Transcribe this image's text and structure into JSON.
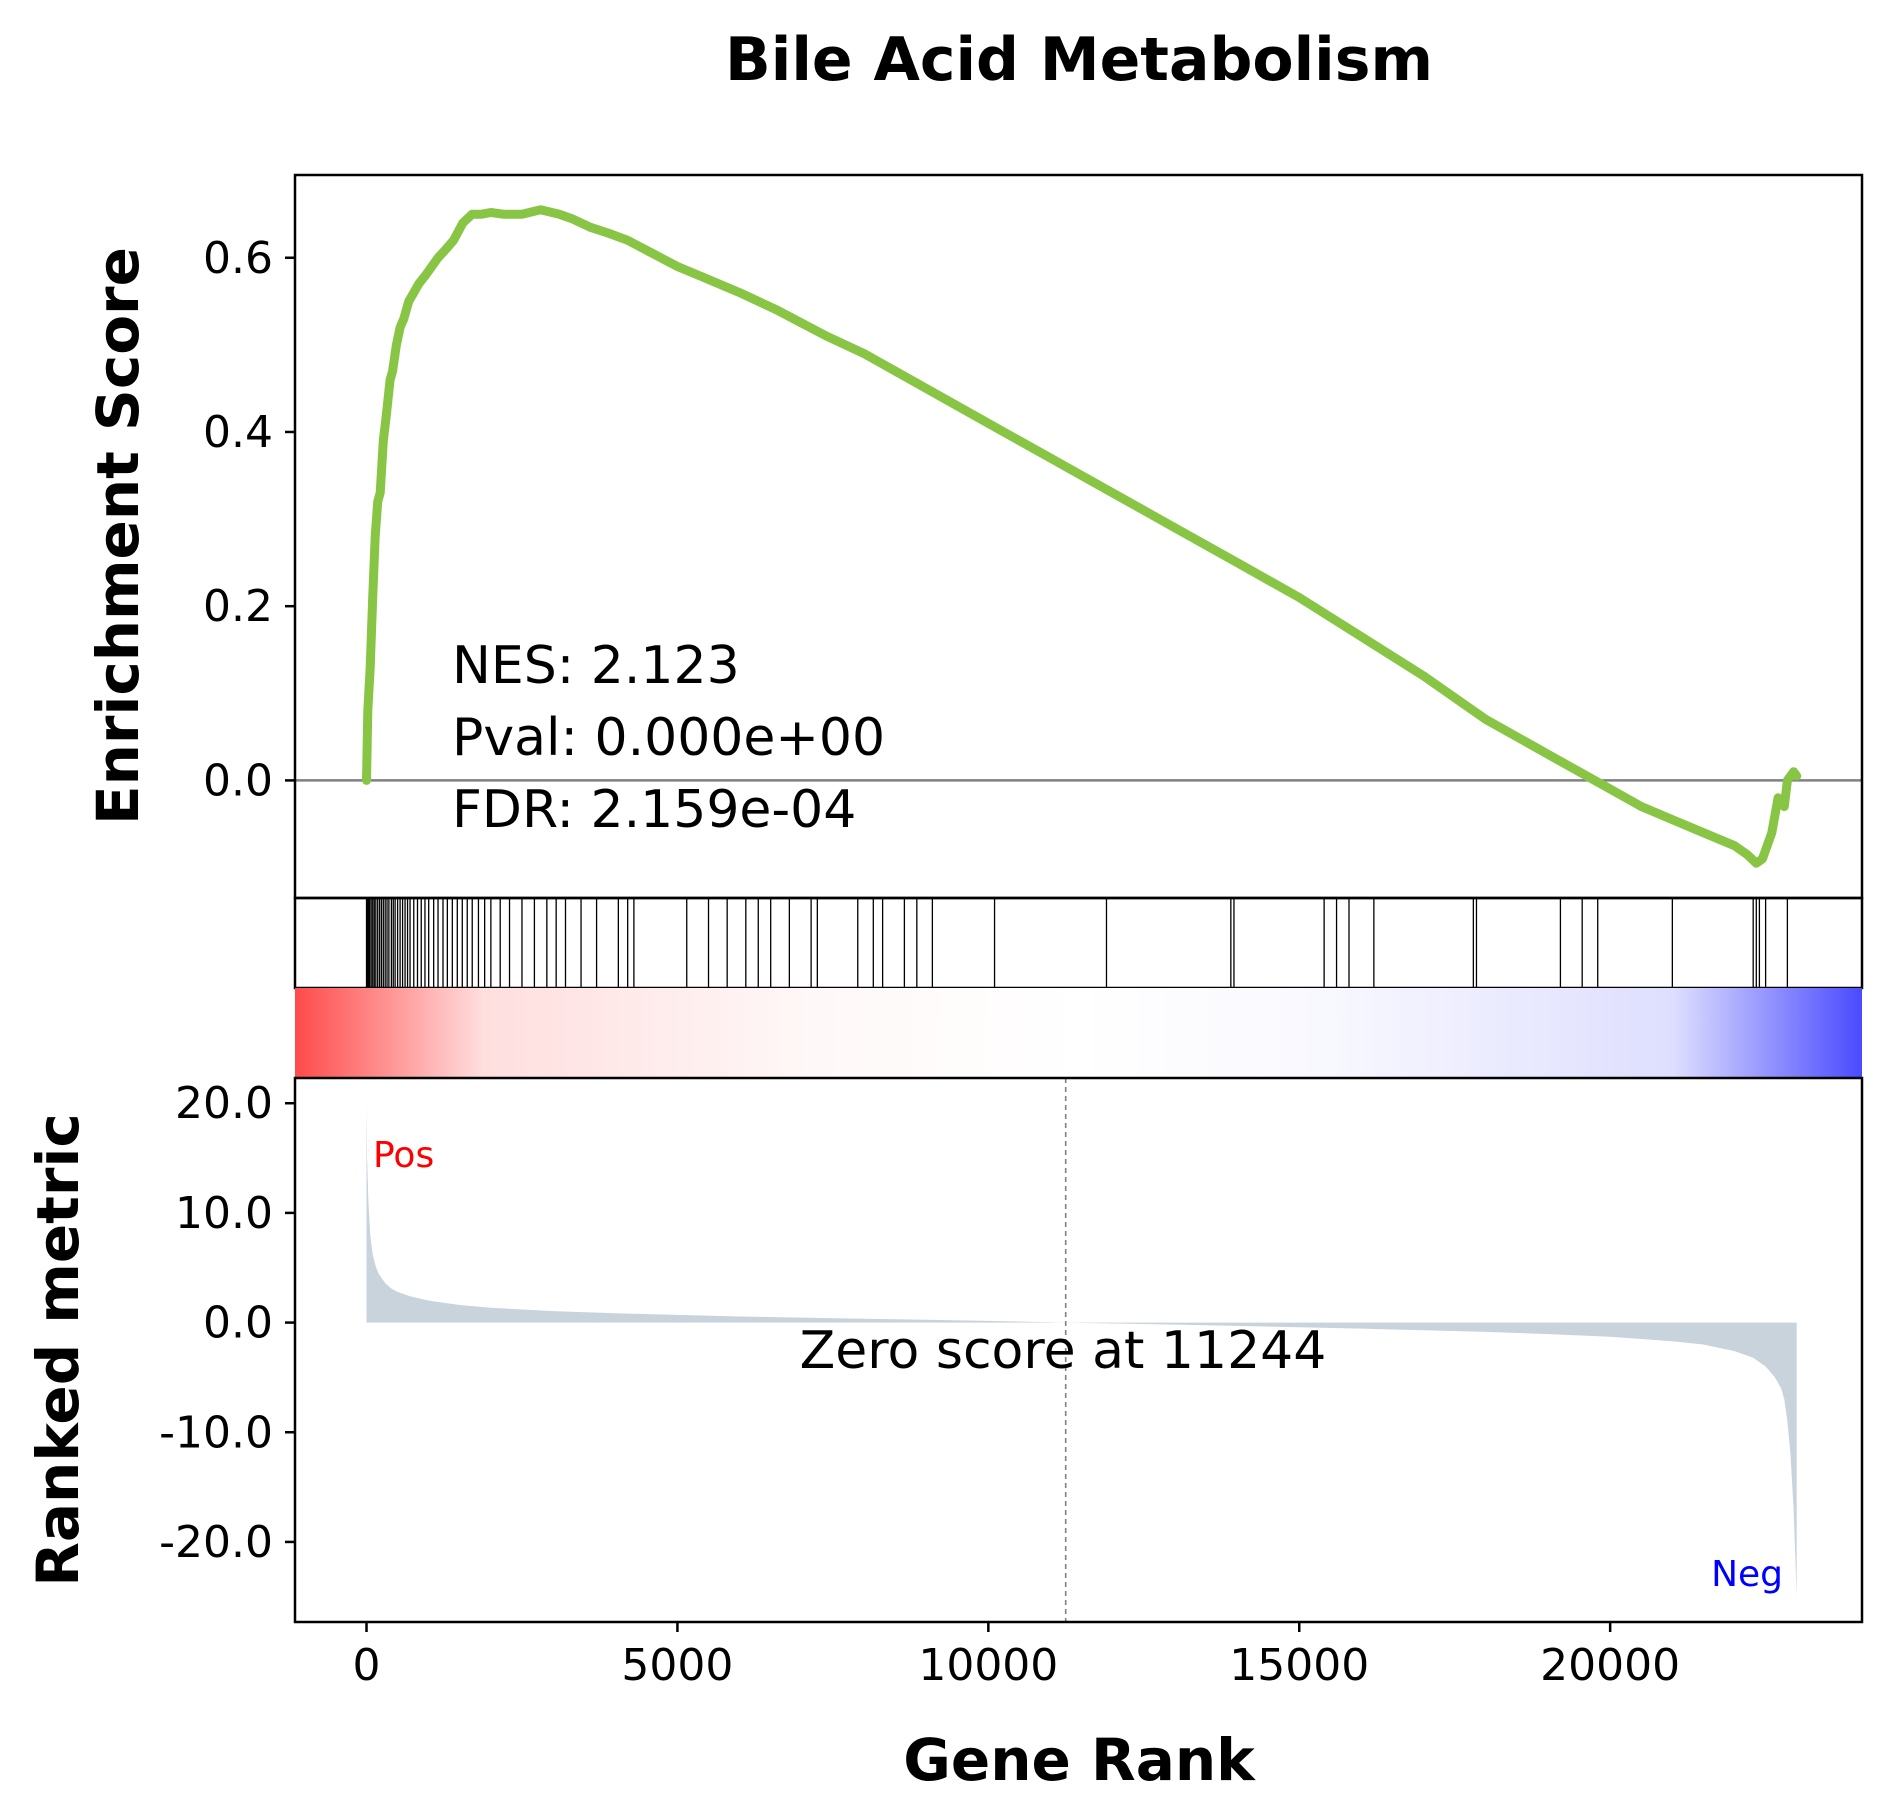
{
  "chart_data": {
    "type": "line",
    "title": "Bile Acid Metabolism",
    "xlabel": "Gene Rank",
    "xlim": [
      -1150,
      24050
    ],
    "x_ticks": [
      0,
      5000,
      10000,
      15000,
      20000
    ],
    "x_tick_labels": [
      "0",
      "5000",
      "10000",
      "15000",
      "20000"
    ],
    "enrichment": {
      "ylabel": "Enrichment Score",
      "ylim": [
        -0.135,
        0.695
      ],
      "y_ticks": [
        0.0,
        0.2,
        0.4,
        0.6
      ],
      "y_tick_labels": [
        "0.0",
        "0.2",
        "0.4",
        "0.6"
      ],
      "line_color": "#88c544",
      "zero_line_color": "#808080",
      "running_score": {
        "x": [
          0,
          20,
          60,
          100,
          140,
          180,
          220,
          270,
          320,
          380,
          420,
          480,
          540,
          600,
          680,
          760,
          840,
          950,
          1050,
          1150,
          1280,
          1400,
          1550,
          1700,
          1850,
          2000,
          2200,
          2500,
          2800,
          3100,
          3300,
          3600,
          3900,
          4200,
          4600,
          5000,
          5400,
          6000,
          6600,
          7000,
          7400,
          8000,
          9000,
          10000,
          11000,
          12000,
          13000,
          14000,
          15000,
          16000,
          17000,
          18000,
          19000,
          19500,
          20000,
          20500,
          21000,
          21500,
          22000,
          22200,
          22350,
          22450,
          22600,
          22700,
          22800,
          22850,
          22950,
          23000
        ],
        "y": [
          0.0,
          0.08,
          0.13,
          0.21,
          0.28,
          0.32,
          0.33,
          0.39,
          0.42,
          0.46,
          0.47,
          0.5,
          0.52,
          0.53,
          0.55,
          0.56,
          0.57,
          0.58,
          0.59,
          0.6,
          0.61,
          0.62,
          0.64,
          0.65,
          0.65,
          0.652,
          0.65,
          0.65,
          0.655,
          0.65,
          0.645,
          0.635,
          0.628,
          0.62,
          0.605,
          0.59,
          0.578,
          0.56,
          0.54,
          0.525,
          0.51,
          0.49,
          0.45,
          0.41,
          0.37,
          0.33,
          0.29,
          0.25,
          0.21,
          0.165,
          0.12,
          0.07,
          0.03,
          0.01,
          -0.01,
          -0.03,
          -0.045,
          -0.06,
          -0.075,
          -0.085,
          -0.095,
          -0.09,
          -0.06,
          -0.02,
          -0.03,
          0.0,
          0.01,
          0.005
        ]
      }
    },
    "hits": {
      "positions": [
        0,
        15,
        30,
        50,
        75,
        100,
        125,
        150,
        180,
        210,
        240,
        270,
        300,
        330,
        360,
        400,
        430,
        460,
        500,
        540,
        580,
        620,
        660,
        700,
        760,
        820,
        880,
        940,
        1000,
        1080,
        1150,
        1230,
        1300,
        1380,
        1460,
        1540,
        1620,
        1700,
        1800,
        1900,
        2000,
        2150,
        2300,
        2500,
        2700,
        2900,
        3050,
        3200,
        3450,
        3700,
        4050,
        4200,
        4300,
        5150,
        5500,
        5800,
        6100,
        6300,
        6500,
        6800,
        7150,
        7250,
        7900,
        8150,
        8300,
        8650,
        8850,
        9100,
        10100,
        11900,
        13900,
        13950,
        15400,
        15600,
        15800,
        16200,
        17800,
        17850,
        19200,
        19550,
        19800,
        21000,
        22300,
        22350,
        22400,
        22500,
        22850
      ]
    },
    "gradient": {
      "colors": [
        "#ff4a4a",
        "#ffffff",
        "#4a4aff"
      ]
    },
    "ranked_metric": {
      "ylabel": "Ranked metric",
      "ylim": [
        -27.3,
        22.3
      ],
      "y_ticks": [
        20,
        10,
        0,
        -10,
        -20
      ],
      "y_tick_labels": [
        "20.0",
        "10.0",
        "0.0",
        "-10.0",
        "-20.0"
      ],
      "fill_color": "#c9d3dc",
      "zero_cross": 11244,
      "zero_cross_label": "Zero score at 11244",
      "pos_label": "Pos",
      "neg_label": "Neg",
      "pos_color": "#ff0000",
      "neg_color": "#0000ff",
      "metric": {
        "x": [
          0,
          10,
          30,
          60,
          100,
          150,
          200,
          300,
          400,
          500,
          700,
          1000,
          1500,
          2000,
          3000,
          4000,
          5000,
          6000,
          7000,
          8000,
          9000,
          10000,
          11244,
          12000,
          13000,
          14000,
          15000,
          16000,
          17000,
          18000,
          19000,
          20000,
          21000,
          21500,
          22000,
          22300,
          22500,
          22650,
          22750,
          22800,
          22850,
          22900,
          22950,
          23000
        ],
        "y": [
          20.0,
          15.0,
          11.0,
          8.0,
          6.2,
          5.1,
          4.4,
          3.6,
          3.1,
          2.8,
          2.4,
          2.0,
          1.6,
          1.35,
          1.05,
          0.85,
          0.7,
          0.55,
          0.45,
          0.35,
          0.25,
          0.15,
          0.0,
          -0.08,
          -0.18,
          -0.3,
          -0.42,
          -0.55,
          -0.7,
          -0.85,
          -1.05,
          -1.3,
          -1.7,
          -2.0,
          -2.6,
          -3.2,
          -4.0,
          -5.0,
          -6.0,
          -7.0,
          -9.0,
          -12.0,
          -17.0,
          -25.0
        ]
      }
    },
    "annotations": [
      "NES: 2.123",
      "Pval: 0.000e+00",
      "FDR: 2.159e-04"
    ]
  }
}
